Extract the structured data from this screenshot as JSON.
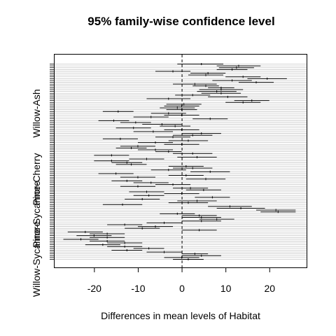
{
  "chart_data": {
    "type": "interval",
    "title": "95% family-wise confidence level",
    "xlabel": "Differences in mean levels of Habitat",
    "ylabel": "",
    "xlim": [
      -29,
      28.5
    ],
    "x_ticks": [
      -20,
      -10,
      0,
      10,
      20
    ],
    "x_tick_labels": [
      "-20",
      "-10",
      "0",
      "10",
      "20"
    ],
    "y_tick_labels": [
      "Willow-Ash",
      "Pine-Cherry",
      "Pine-Sycamore",
      "Willow-Sycamore"
    ],
    "reference_line": 0,
    "grid": "horizontal",
    "intervals": [
      {
        "lwr": -1,
        "est": 4.5,
        "upr": 9.5
      },
      {
        "lwr": 8,
        "est": 13.0,
        "upr": 18
      },
      {
        "lwr": 8.5,
        "est": 12.5,
        "upr": 16.5
      },
      {
        "lwr": 8,
        "est": 11.5,
        "upr": 15
      },
      {
        "lwr": -6,
        "est": -2.0,
        "upr": 2
      },
      {
        "lwr": 2,
        "est": 6.0,
        "upr": 10
      },
      {
        "lwr": 1.5,
        "est": 5.5,
        "upr": 9.5
      },
      {
        "lwr": 10,
        "est": 14.0,
        "upr": 18
      },
      {
        "lwr": 15,
        "est": 19.5,
        "upr": 24
      },
      {
        "lwr": 7,
        "est": 11.5,
        "upr": 16
      },
      {
        "lwr": 13,
        "est": 17.0,
        "upr": 21
      },
      {
        "lwr": -2,
        "est": 3.0,
        "upr": 8
      },
      {
        "lwr": 2.5,
        "est": 5.5,
        "upr": 8.5
      },
      {
        "lwr": 6,
        "est": 9.0,
        "upr": 12
      },
      {
        "lwr": 4,
        "est": 9.0,
        "upr": 14
      },
      {
        "lwr": 3.5,
        "est": 8.0,
        "upr": 12.5
      },
      {
        "lwr": 4.5,
        "est": 9.0,
        "upr": 13.5
      },
      {
        "lwr": -1.5,
        "est": 2.5,
        "upr": 6.5
      },
      {
        "lwr": 6,
        "est": 10.5,
        "upr": 15
      },
      {
        "lwr": -8,
        "est": -3.0,
        "upr": 2
      },
      {
        "lwr": 12,
        "est": 16.0,
        "upr": 20
      },
      {
        "lwr": 10,
        "est": 14.0,
        "upr": 18
      },
      {
        "lwr": -3.5,
        "est": 0.5,
        "upr": 4.5
      },
      {
        "lwr": -4,
        "est": 0.0,
        "upr": 4
      },
      {
        "lwr": -5,
        "est": -1.0,
        "upr": 3
      },
      {
        "lwr": -3.5,
        "est": 0.0,
        "upr": 3.5
      },
      {
        "lwr": -18,
        "est": -14.5,
        "upr": -11
      },
      {
        "lwr": -7,
        "est": -3.0,
        "upr": 1
      },
      {
        "lwr": -4,
        "est": 0.0,
        "upr": 4
      },
      {
        "lwr": -11,
        "est": -7.0,
        "upr": -3
      },
      {
        "lwr": 2.5,
        "est": 6.5,
        "upr": 10.5
      },
      {
        "lwr": -19,
        "est": -15.5,
        "upr": -12
      },
      {
        "lwr": -14,
        "est": -10.5,
        "upr": -7
      },
      {
        "lwr": -9,
        "est": -4.5,
        "upr": 0
      },
      {
        "lwr": -5,
        "est": -1.5,
        "upr": 2
      },
      {
        "lwr": -15,
        "est": -11.0,
        "upr": -7
      },
      {
        "lwr": -4,
        "est": 0.0,
        "upr": 4
      },
      {
        "lwr": -11,
        "est": -6.5,
        "upr": -2
      },
      {
        "lwr": 0,
        "est": 4.5,
        "upr": 9
      },
      {
        "lwr": -2,
        "est": 2.5,
        "upr": 7
      },
      {
        "lwr": -6,
        "est": -2.0,
        "upr": 2
      },
      {
        "lwr": -18,
        "est": -14.0,
        "upr": -10
      },
      {
        "lwr": -3,
        "est": 1.5,
        "upr": 6
      },
      {
        "lwr": -10,
        "est": -6.0,
        "upr": -2
      },
      {
        "lwr": -4,
        "est": 0.0,
        "upr": 4
      },
      {
        "lwr": -14,
        "est": -10.0,
        "upr": -6
      },
      {
        "lwr": -15,
        "est": -11.5,
        "upr": -8
      },
      {
        "lwr": -10,
        "est": -6.0,
        "upr": -2
      },
      {
        "lwr": -6,
        "est": -3.0,
        "upr": 0
      },
      {
        "lwr": -2,
        "est": 2.5,
        "upr": 7
      },
      {
        "lwr": -20,
        "est": -16.0,
        "upr": -12
      },
      {
        "lwr": -1,
        "est": 3.5,
        "upr": 8
      },
      {
        "lwr": -12,
        "est": -8.0,
        "upr": -4
      },
      {
        "lwr": -20,
        "est": -16.0,
        "upr": -12
      },
      {
        "lwr": -16,
        "est": -12.5,
        "upr": -9
      },
      {
        "lwr": -15,
        "est": -11.5,
        "upr": -8
      },
      {
        "lwr": -3,
        "est": 1.0,
        "upr": 5
      },
      {
        "lwr": -2,
        "est": 2.5,
        "upr": 7
      },
      {
        "lwr": -7,
        "est": -3.0,
        "upr": 1
      },
      {
        "lwr": 2,
        "est": 6.5,
        "upr": 11
      },
      {
        "lwr": -19,
        "est": -15.0,
        "upr": -11
      },
      {
        "lwr": -3,
        "est": 1.0,
        "upr": 5
      },
      {
        "lwr": -14,
        "est": -10.0,
        "upr": -6
      },
      {
        "lwr": 1,
        "est": 5.5,
        "upr": 10
      },
      {
        "lwr": -16,
        "est": -12.5,
        "upr": -9
      },
      {
        "lwr": -11,
        "est": -7.0,
        "upr": -3
      },
      {
        "lwr": -6,
        "est": -2.0,
        "upr": 2
      },
      {
        "lwr": -14,
        "est": -10.0,
        "upr": -6
      },
      {
        "lwr": -2,
        "est": 2.0,
        "upr": 6
      },
      {
        "lwr": 1,
        "est": 5.0,
        "upr": 9
      },
      {
        "lwr": -12,
        "est": -8.0,
        "upr": -4
      },
      {
        "lwr": -4,
        "est": 0.0,
        "upr": 4
      },
      {
        "lwr": -11,
        "est": -7.5,
        "upr": -4
      },
      {
        "lwr": 3,
        "est": 7.0,
        "upr": 11
      },
      {
        "lwr": -13,
        "est": -9.0,
        "upr": -5
      },
      {
        "lwr": -1,
        "est": 3.5,
        "upr": 8
      },
      {
        "lwr": -3,
        "est": 1.5,
        "upr": 6
      },
      {
        "lwr": -18,
        "est": -13.5,
        "upr": -9
      },
      {
        "lwr": 6,
        "est": 11.0,
        "upr": 16
      },
      {
        "lwr": 8,
        "est": 13.5,
        "upr": 19
      },
      {
        "lwr": 17,
        "est": 21.5,
        "upr": 26
      },
      {
        "lwr": 18,
        "est": 22.0,
        "upr": 26
      },
      {
        "lwr": -5,
        "est": -1.0,
        "upr": 3
      },
      {
        "lwr": 0,
        "est": 4.0,
        "upr": 8
      },
      {
        "lwr": 0,
        "est": 4.5,
        "upr": 9
      },
      {
        "lwr": 4,
        "est": 8.0,
        "upr": 12
      },
      {
        "lwr": 0,
        "est": 4.5,
        "upr": 9
      },
      {
        "lwr": -8,
        "est": -4.0,
        "upr": 0
      },
      {
        "lwr": -17,
        "est": -13.0,
        "upr": -9
      },
      {
        "lwr": -10,
        "est": -6.0,
        "upr": -2
      },
      {
        "lwr": -13,
        "est": -9.0,
        "upr": -5
      },
      {
        "lwr": 0,
        "est": 4.0,
        "upr": 8
      },
      {
        "lwr": -26,
        "est": -22.0,
        "upr": -18
      },
      {
        "lwr": -21,
        "est": -17.0,
        "upr": -13
      },
      {
        "lwr": -24,
        "est": -20.0,
        "upr": -16
      },
      {
        "lwr": -21,
        "est": -17.0,
        "upr": -13
      },
      {
        "lwr": -27,
        "est": -23.0,
        "upr": -19
      },
      {
        "lwr": -21,
        "est": -17.0,
        "upr": -13
      },
      {
        "lwr": -17,
        "est": -13.0,
        "upr": -9
      },
      {
        "lwr": -22,
        "est": -18.0,
        "upr": -14
      },
      {
        "lwr": -17,
        "est": -13.0,
        "upr": -9
      },
      {
        "lwr": -11,
        "est": -7.5,
        "upr": -4
      },
      {
        "lwr": -16,
        "est": -12.5,
        "upr": -9
      },
      {
        "lwr": -8,
        "est": -4.0,
        "upr": 0
      },
      {
        "lwr": 0,
        "est": 3.0,
        "upr": 6
      },
      {
        "lwr": 0,
        "est": 4.5,
        "upr": 9
      },
      {
        "lwr": -4,
        "est": 0.0,
        "upr": 4
      },
      {
        "lwr": -2,
        "est": 1.5,
        "upr": 5
      }
    ]
  }
}
